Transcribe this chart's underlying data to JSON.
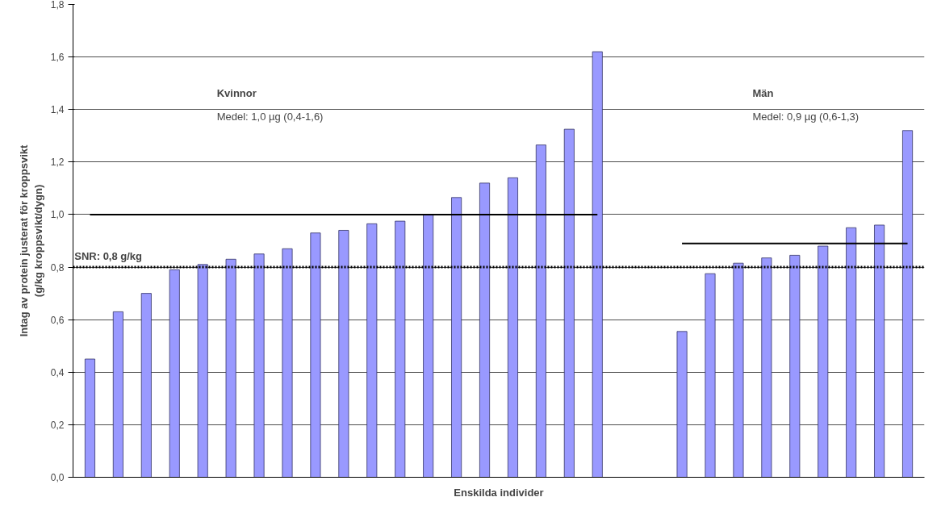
{
  "chart_data": {
    "type": "bar",
    "xlabel": "Enskilda individer",
    "ylabel": "Intag av protein justerat för kroppsvikt\n(g/kg kroppsvikt/dygn)",
    "categories": [
      null,
      null,
      null,
      null,
      null,
      null,
      null,
      null,
      null,
      null,
      null,
      null,
      null,
      null,
      null,
      null,
      null,
      null,
      null,
      null,
      null,
      null,
      null,
      null,
      null,
      null,
      null,
      null,
      null,
      null
    ],
    "series": [
      {
        "color": "#9999ff",
        "values": [
          0.45,
          0.63,
          0.7,
          0.79,
          0.81,
          0.83,
          0.85,
          0.87,
          0.93,
          0.94,
          0.965,
          0.975,
          1.0,
          1.065,
          1.12,
          1.14,
          1.265,
          1.325,
          1.62,
          null,
          null,
          0.555,
          0.775,
          0.815,
          0.835,
          0.845,
          0.88,
          0.95,
          0.96,
          1.32
        ]
      },
      {
        "type": "line",
        "color": "#000000",
        "values": [
          1.0,
          1.0,
          1.0,
          1.0,
          1.0,
          1.0,
          1.0,
          1.0,
          1.0,
          1.0,
          1.0,
          1.0,
          1.0,
          1.0,
          1.0,
          1.0,
          1.0,
          1.0,
          1.0,
          null,
          null,
          null,
          null,
          null,
          null,
          null,
          null,
          null,
          null,
          null
        ]
      },
      {
        "type": "line",
        "color": "#000000",
        "values": [
          null,
          null,
          null,
          null,
          null,
          null,
          null,
          null,
          null,
          null,
          null,
          null,
          null,
          null,
          null,
          null,
          null,
          null,
          null,
          null,
          null,
          0.89,
          0.89,
          0.89,
          0.89,
          0.89,
          0.89,
          0.89,
          0.89,
          0.89
        ]
      }
    ],
    "ref_lines": [
      {
        "axis": "y",
        "value": 0.8,
        "label": "SNR: 0,8 g/kg",
        "color": "#000000",
        "line_style": "dotted"
      }
    ],
    "annotations": [
      "Kvinnor",
      "Medel: 1,0 µg (0,4-1,6)",
      "Män",
      "Medel: 0,9 µg (0,6-1,3)"
    ],
    "ylim": [
      0,
      1.8
    ],
    "yticks": [
      {
        "value": 0,
        "label": "0,0"
      },
      {
        "value": 0.2,
        "label": "0,2"
      },
      {
        "value": 0.4,
        "label": "0,4"
      },
      {
        "value": 0.6,
        "label": "0,6"
      },
      {
        "value": 0.8,
        "label": "0,8"
      },
      {
        "value": 1.0,
        "label": "1,0"
      },
      {
        "value": 1.2,
        "label": "1,2"
      },
      {
        "value": 1.4,
        "label": "1,4"
      },
      {
        "value": 1.6,
        "label": "1,6"
      },
      {
        "value": 1.8,
        "label": "1,8"
      }
    ],
    "grid": "y"
  }
}
